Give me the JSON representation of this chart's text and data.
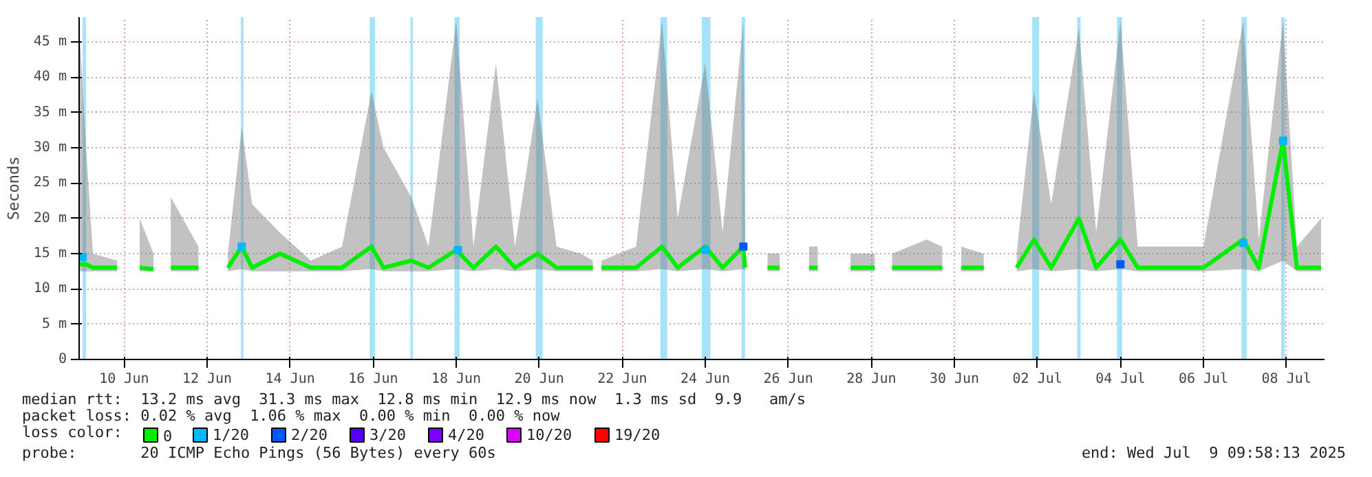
{
  "chart_data": {
    "type": "line",
    "ylabel": "Seconds",
    "xlim": [
      "2025-06-09T10:00",
      "2025-07-09T10:00"
    ],
    "xticks": [
      {
        "value": "2025-06-10T12:00",
        "label": "10 Jun"
      },
      {
        "value": "2025-06-12T12:00",
        "label": "12 Jun"
      },
      {
        "value": "2025-06-14T12:00",
        "label": "14 Jun"
      },
      {
        "value": "2025-06-16T12:00",
        "label": "16 Jun"
      },
      {
        "value": "2025-06-18T12:00",
        "label": "18 Jun"
      },
      {
        "value": "2025-06-20T12:00",
        "label": "20 Jun"
      },
      {
        "value": "2025-06-22T12:00",
        "label": "22 Jun"
      },
      {
        "value": "2025-06-24T12:00",
        "label": "24 Jun"
      },
      {
        "value": "2025-06-26T12:00",
        "label": "26 Jun"
      },
      {
        "value": "2025-06-28T12:00",
        "label": "28 Jun"
      },
      {
        "value": "2025-06-30T12:00",
        "label": "30 Jun"
      },
      {
        "value": "2025-07-02T12:00",
        "label": "02 Jul"
      },
      {
        "value": "2025-07-04T12:00",
        "label": "04 Jul"
      },
      {
        "value": "2025-07-06T12:00",
        "label": "06 Jul"
      },
      {
        "value": "2025-07-08T12:00",
        "label": "08 Jul"
      }
    ],
    "ylim": [
      0,
      48.5
    ],
    "yticks": [
      0,
      {
        "value": 5,
        "label": "5 m"
      },
      {
        "value": 10,
        "label": "10 m"
      },
      {
        "value": 15,
        "label": "15 m"
      },
      {
        "value": 20,
        "label": "20 m"
      },
      {
        "value": 25,
        "label": "25 m"
      },
      {
        "value": 30,
        "label": "30 m"
      },
      {
        "value": 35,
        "label": "35 m"
      },
      {
        "value": 40,
        "label": "40 m"
      },
      {
        "value": 45,
        "label": "45 m"
      }
    ],
    "grid": true,
    "legend": "bottom",
    "legend_title": "loss color:",
    "series": [
      {
        "name": "0",
        "color": "#00ee00",
        "x": [
          "2025-06-09T10:00",
          "2025-06-09T14:00",
          "2025-06-09T18:00",
          "2025-06-10T08:00",
          "2025-06-10T14:00",
          "2025-06-10T21:00",
          "2025-06-11T05:00",
          "2025-06-11T10:00",
          "2025-06-11T15:00",
          "2025-06-12T07:00",
          "2025-06-12T16:00",
          "2025-06-13T00:00",
          "2025-06-13T08:00",
          "2025-06-13T14:00",
          "2025-06-14T06:00",
          "2025-06-15T00:00",
          "2025-06-15T18:00",
          "2025-06-16T11:00",
          "2025-06-16T18:00",
          "2025-06-17T10:00",
          "2025-06-17T20:00",
          "2025-06-18T12:00",
          "2025-06-18T22:00",
          "2025-06-19T11:00",
          "2025-06-19T22:00",
          "2025-06-20T11:00",
          "2025-06-20T22:00",
          "2025-06-21T12:00",
          "2025-06-21T19:00",
          "2025-06-21T21:30",
          "2025-06-22T00:00",
          "2025-06-22T20:00",
          "2025-06-23T11:00",
          "2025-06-23T20:00",
          "2025-06-24T12:00",
          "2025-06-24T22:00",
          "2025-06-25T10:00",
          "2025-06-25T11:00",
          "2025-06-25T18:00",
          "2025-06-26T00:00",
          "2025-06-26T07:00",
          "2025-06-26T16:00",
          "2025-06-27T00:00",
          "2025-06-27T05:00",
          "2025-06-27T14:00",
          "2025-06-28T00:00",
          "2025-06-28T14:00",
          "2025-06-28T19:00",
          "2025-06-29T00:00",
          "2025-06-29T20:00",
          "2025-06-30T05:00",
          "2025-06-30T10:00",
          "2025-06-30T16:00",
          "2025-07-01T05:00",
          "2025-07-01T14:00",
          "2025-07-02T00:00",
          "2025-07-02T10:00",
          "2025-07-02T20:00",
          "2025-07-03T12:00",
          "2025-07-03T22:00",
          "2025-07-04T12:00",
          "2025-07-04T22:00",
          "2025-07-05T14:00",
          "2025-07-06T12:00",
          "2025-07-07T11:00",
          "2025-07-07T20:00",
          "2025-07-08T10:00",
          "2025-07-08T18:00",
          "2025-07-09T08:00"
        ],
        "values": [
          13.5,
          13.5,
          13,
          13,
          null,
          13,
          12.8,
          null,
          13,
          13,
          null,
          13,
          16,
          13,
          15,
          13,
          13,
          16,
          13,
          14,
          13,
          15.5,
          13,
          16,
          13,
          15,
          13,
          13,
          13,
          null,
          13,
          13,
          16,
          13,
          16,
          13,
          16,
          13,
          null,
          13,
          13,
          null,
          13,
          13,
          null,
          13,
          13,
          null,
          13,
          13,
          13,
          null,
          13,
          13,
          null,
          13,
          17,
          13,
          20,
          13,
          17,
          13,
          13,
          13,
          17,
          13,
          31,
          13,
          13
        ],
        "lower": [
          12.5,
          12.5,
          12.5,
          12.5,
          null,
          12.5,
          12.5,
          null,
          12.5,
          12.5,
          null,
          12.5,
          12.8,
          12.5,
          12.5,
          12.5,
          12.5,
          12.8,
          12.5,
          12.5,
          12.5,
          12.8,
          12.5,
          12.8,
          12.5,
          12.8,
          12.5,
          12.5,
          12.5,
          null,
          12.5,
          12.5,
          12.8,
          12.5,
          12.8,
          12.5,
          12.8,
          12.5,
          null,
          12.5,
          12.5,
          null,
          12.5,
          12.5,
          null,
          12.5,
          12.5,
          null,
          12.5,
          12.5,
          12.5,
          null,
          12.5,
          12.5,
          null,
          12.5,
          12.8,
          12.5,
          12.8,
          12.5,
          12.8,
          12.5,
          12.5,
          12.5,
          12.8,
          12.5,
          14,
          12.5,
          12.5
        ],
        "upper": [
          48,
          30,
          15,
          14,
          null,
          20,
          15,
          null,
          23,
          16,
          null,
          15,
          33,
          22,
          18,
          14,
          16,
          38,
          30,
          23,
          16,
          48,
          16,
          42,
          16,
          37,
          16,
          15,
          14,
          null,
          14,
          16,
          48,
          20,
          42,
          18,
          48,
          20,
          null,
          15,
          15,
          null,
          16,
          16,
          null,
          15,
          15,
          null,
          15,
          17,
          16,
          null,
          16,
          15,
          null,
          15,
          38,
          22,
          47,
          18,
          48,
          16,
          16,
          16,
          48,
          17,
          48,
          16,
          20
        ]
      },
      {
        "name": "1/20",
        "type": "scatter",
        "marker": "square",
        "color": "#00b8ff",
        "x": [
          "2025-06-09T12:00",
          "2025-06-13T08:00",
          "2025-06-18T13:00",
          "2025-06-24T12:00",
          "2025-07-07T11:00",
          "2025-07-08T10:00"
        ],
        "values": [
          14.5,
          16,
          15.5,
          15.5,
          16.5,
          31
        ]
      },
      {
        "name": "2/20",
        "type": "scatter",
        "marker": "square",
        "color": "#0059ff",
        "x": [
          "2025-06-25T10:00",
          "2025-07-04T12:00"
        ],
        "values": [
          16,
          13.5
        ]
      },
      {
        "name": "3/20",
        "type": "scatter",
        "color": "#5500ff"
      },
      {
        "name": "4/20",
        "type": "scatter",
        "color": "#7e00ff"
      },
      {
        "name": "10/20",
        "type": "scatter",
        "color": "#dd00ff"
      },
      {
        "name": "19/20",
        "type": "scatter",
        "color": "#ff0000"
      }
    ],
    "bands": [
      {
        "axis": "x",
        "from": "2025-06-09T12:00",
        "to": "2025-06-09T14:00",
        "color": "#a6e3fb"
      },
      {
        "axis": "x",
        "from": "2025-06-13T07:30",
        "to": "2025-06-13T09:00",
        "color": "#a6e3fb"
      },
      {
        "axis": "x",
        "from": "2025-06-16T10:00",
        "to": "2025-06-16T13:00",
        "color": "#a6e3fb"
      },
      {
        "axis": "x",
        "from": "2025-06-17T09:30",
        "to": "2025-06-17T11:00",
        "color": "#a6e3fb"
      },
      {
        "axis": "x",
        "from": "2025-06-18T11:00",
        "to": "2025-06-18T14:00",
        "color": "#a6e3fb"
      },
      {
        "axis": "x",
        "from": "2025-06-20T10:00",
        "to": "2025-06-20T14:00",
        "color": "#a6e3fb"
      },
      {
        "axis": "x",
        "from": "2025-06-23T10:00",
        "to": "2025-06-23T14:00",
        "color": "#a6e3fb"
      },
      {
        "axis": "x",
        "from": "2025-06-24T10:00",
        "to": "2025-06-24T15:00",
        "color": "#a6e3fb"
      },
      {
        "axis": "x",
        "from": "2025-06-25T09:00",
        "to": "2025-06-25T11:00",
        "color": "#a6e3fb"
      },
      {
        "axis": "x",
        "from": "2025-07-02T09:00",
        "to": "2025-07-02T13:00",
        "color": "#a6e3fb"
      },
      {
        "axis": "x",
        "from": "2025-07-03T11:00",
        "to": "2025-07-03T13:00",
        "color": "#a6e3fb"
      },
      {
        "axis": "x",
        "from": "2025-07-04T10:00",
        "to": "2025-07-04T13:00",
        "color": "#a6e3fb"
      },
      {
        "axis": "x",
        "from": "2025-07-07T10:00",
        "to": "2025-07-07T13:00",
        "color": "#a6e3fb"
      },
      {
        "axis": "x",
        "from": "2025-07-08T09:00",
        "to": "2025-07-08T11:00",
        "color": "#a6e3fb"
      }
    ],
    "annotations": [
      "median rtt:  13.2 ms avg  31.3 ms max  12.8 ms min  12.9 ms now  1.3 ms sd  9.9   am/s",
      "packet loss: 0.02 % avg  1.06 % max  0.00 % min  0.00 % now",
      "probe:       20 ICMP Echo Pings (56 Bytes) every 60s",
      "end: Wed Jul  9 09:58:13 2025"
    ]
  }
}
